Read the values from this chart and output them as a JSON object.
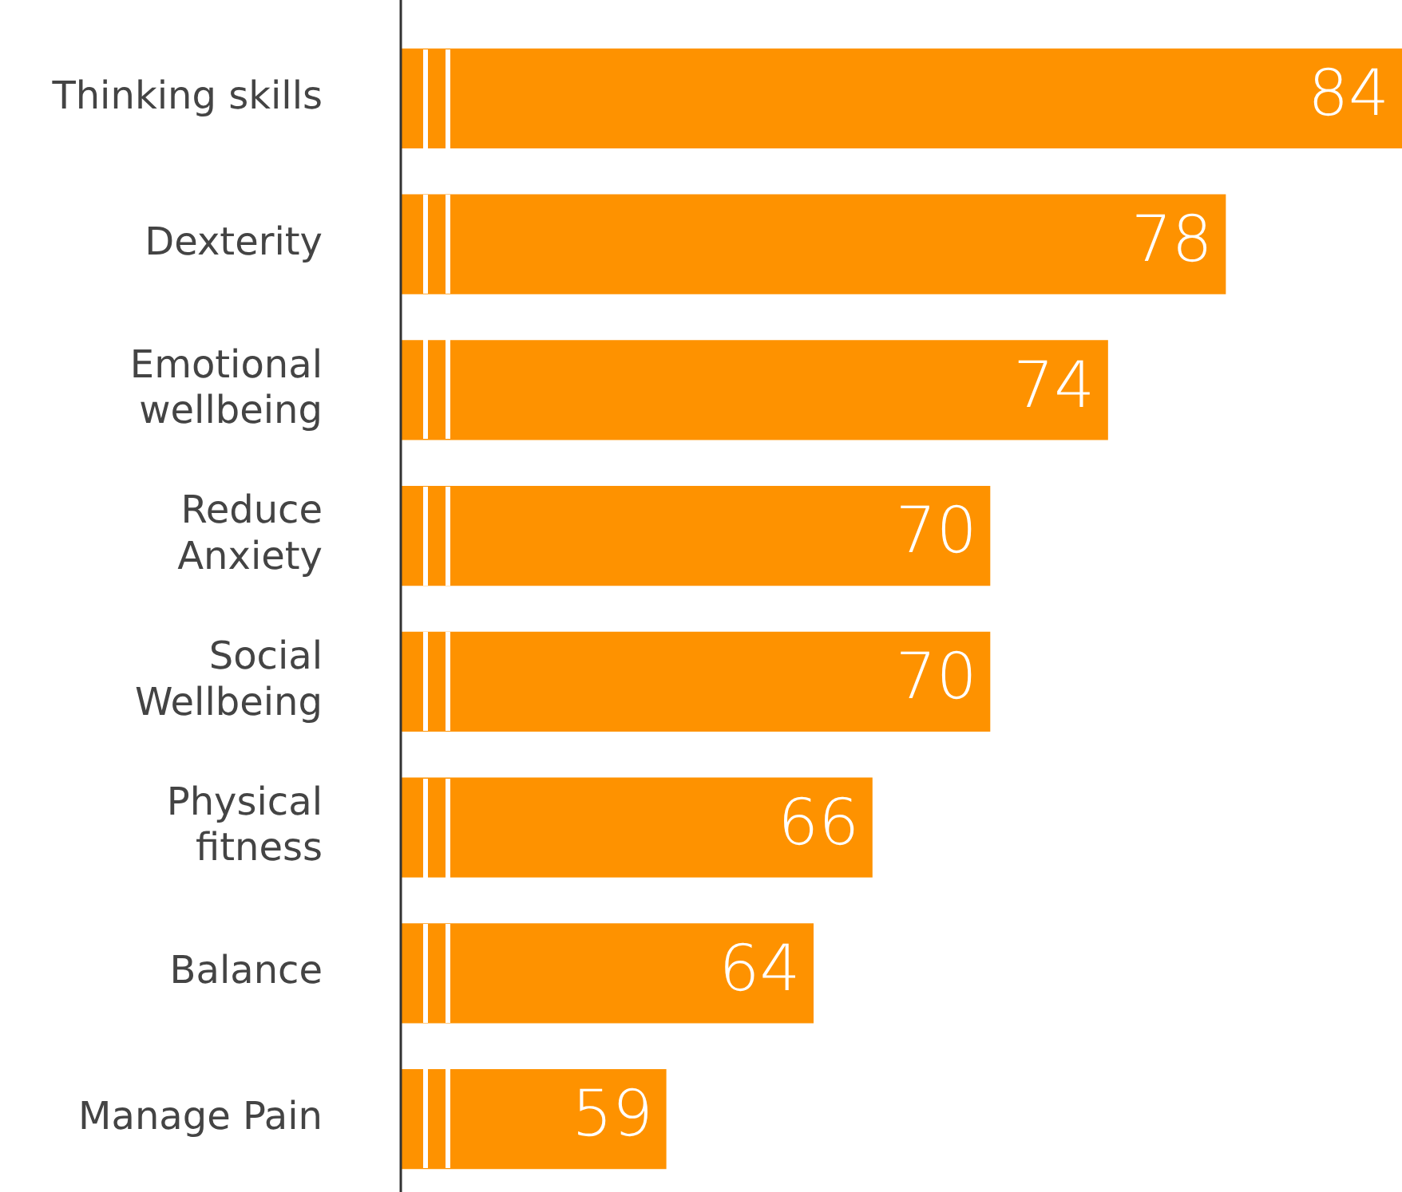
{
  "chart_data": {
    "type": "bar",
    "orientation": "horizontal",
    "categories": [
      "Thinking skills",
      "Dexterity",
      "Emotional\nwellbeing",
      "Reduce\nAnxiety",
      "Social\nWellbeing",
      "Physical\nfitness",
      "Balance",
      "Manage Pain"
    ],
    "values": [
      84,
      78,
      74,
      70,
      70,
      66,
      64,
      59
    ],
    "color": "#fe9200",
    "xlim": [
      50,
      84
    ],
    "data_labels": true,
    "grid": false,
    "legend": false,
    "tick_labels": "y"
  }
}
